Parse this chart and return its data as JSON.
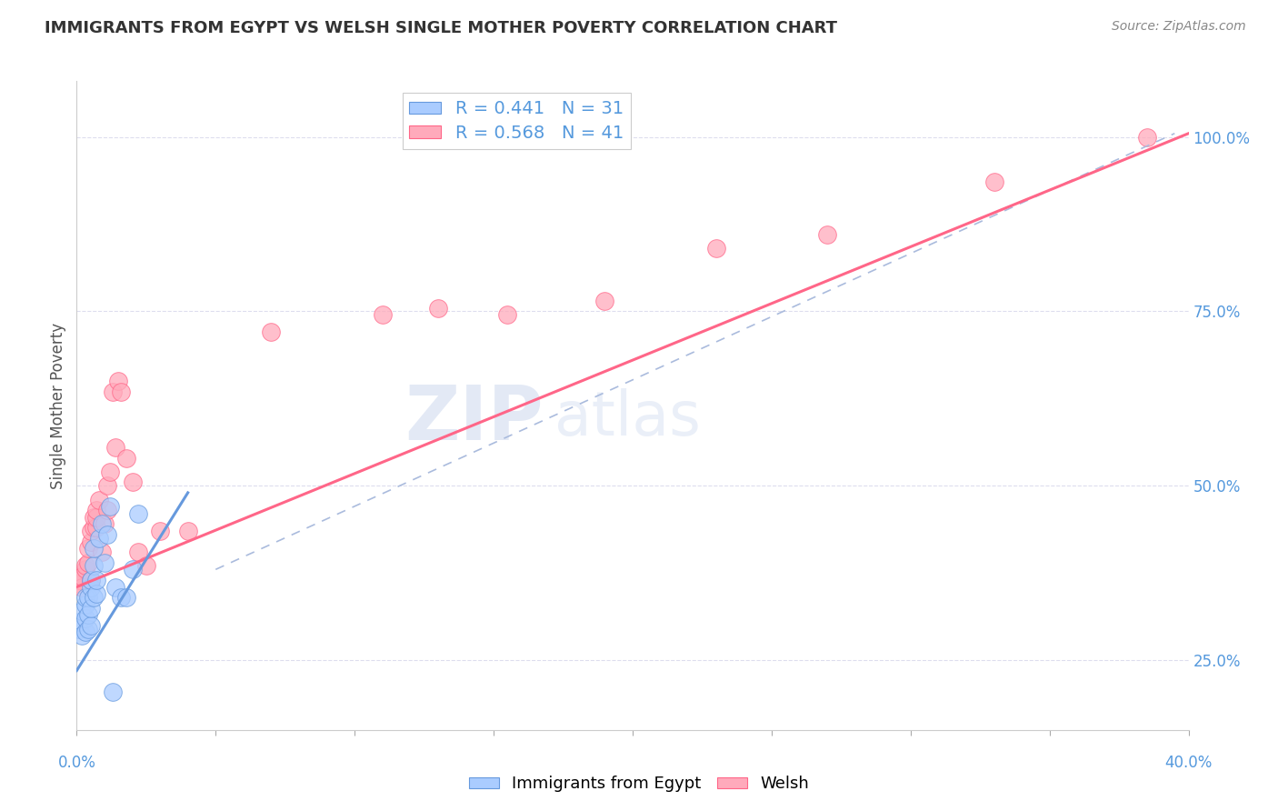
{
  "title": "IMMIGRANTS FROM EGYPT VS WELSH SINGLE MOTHER POVERTY CORRELATION CHART",
  "source": "Source: ZipAtlas.com",
  "ylabel": "Single Mother Poverty",
  "right_yticks": [
    "25.0%",
    "50.0%",
    "75.0%",
    "100.0%"
  ],
  "right_ytick_vals": [
    0.25,
    0.5,
    0.75,
    1.0
  ],
  "xlim": [
    0.0,
    0.4
  ],
  "ylim": [
    0.15,
    1.08
  ],
  "color_blue": "#aaccff",
  "color_pink": "#ffaabb",
  "line_blue": "#6699dd",
  "line_pink": "#ff6688",
  "egypt_x": [
    0.001,
    0.001,
    0.002,
    0.002,
    0.003,
    0.003,
    0.003,
    0.003,
    0.004,
    0.004,
    0.004,
    0.005,
    0.005,
    0.005,
    0.005,
    0.006,
    0.006,
    0.006,
    0.007,
    0.007,
    0.008,
    0.009,
    0.01,
    0.011,
    0.012,
    0.013,
    0.014,
    0.016,
    0.018,
    0.02,
    0.022
  ],
  "egypt_y": [
    0.295,
    0.305,
    0.285,
    0.32,
    0.29,
    0.31,
    0.33,
    0.34,
    0.295,
    0.315,
    0.34,
    0.3,
    0.325,
    0.355,
    0.365,
    0.34,
    0.385,
    0.41,
    0.345,
    0.365,
    0.425,
    0.445,
    0.39,
    0.43,
    0.47,
    0.205,
    0.355,
    0.34,
    0.34,
    0.38,
    0.46
  ],
  "welsh_x": [
    0.001,
    0.001,
    0.002,
    0.002,
    0.003,
    0.003,
    0.004,
    0.004,
    0.005,
    0.005,
    0.005,
    0.006,
    0.006,
    0.007,
    0.007,
    0.007,
    0.008,
    0.009,
    0.01,
    0.011,
    0.011,
    0.012,
    0.013,
    0.014,
    0.015,
    0.016,
    0.018,
    0.02,
    0.022,
    0.025,
    0.03,
    0.04,
    0.07,
    0.11,
    0.13,
    0.155,
    0.19,
    0.23,
    0.27,
    0.33,
    0.385
  ],
  "welsh_y": [
    0.36,
    0.365,
    0.355,
    0.37,
    0.38,
    0.385,
    0.39,
    0.41,
    0.365,
    0.42,
    0.435,
    0.44,
    0.455,
    0.44,
    0.455,
    0.465,
    0.48,
    0.405,
    0.445,
    0.465,
    0.5,
    0.52,
    0.635,
    0.555,
    0.65,
    0.635,
    0.54,
    0.505,
    0.405,
    0.385,
    0.435,
    0.435,
    0.72,
    0.745,
    0.755,
    0.745,
    0.765,
    0.84,
    0.86,
    0.935,
    1.0
  ],
  "egypt_line_x": [
    0.0,
    0.04
  ],
  "egypt_line_y": [
    0.235,
    0.49
  ],
  "welsh_line_x": [
    0.0,
    0.4
  ],
  "welsh_line_y": [
    0.355,
    1.005
  ],
  "dash_line_x": [
    0.05,
    0.395
  ],
  "dash_line_y": [
    0.38,
    1.005
  ]
}
